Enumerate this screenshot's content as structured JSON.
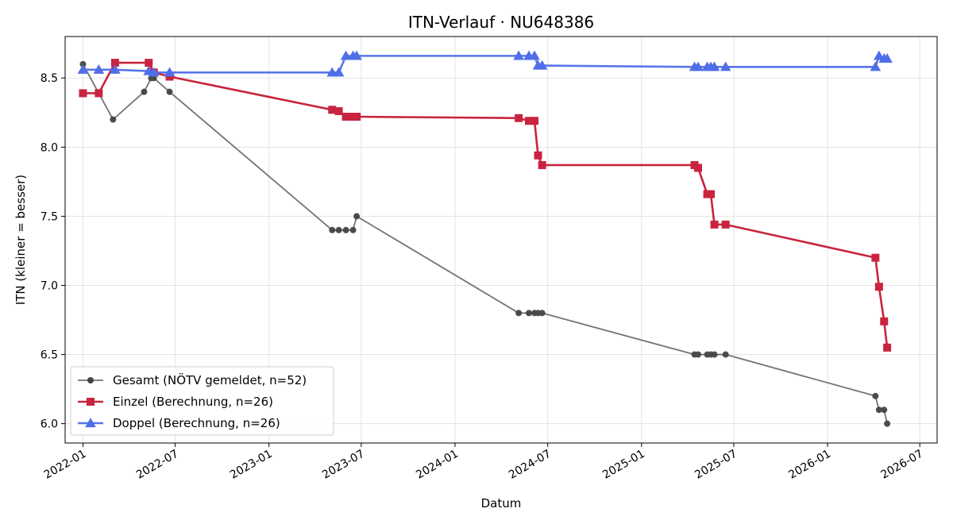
{
  "chart_data": {
    "type": "line",
    "title": "ITN-Verlauf · NU648386",
    "xlabel": "Datum",
    "ylabel": "ITN  (kleiner = besser)",
    "x_type": "date",
    "xlim": [
      "2021-11-27",
      "2026-08-04"
    ],
    "ylim": [
      5.86,
      8.8
    ],
    "x_ticks": [
      "2022-01",
      "2022-07",
      "2023-01",
      "2023-07",
      "2024-01",
      "2024-07",
      "2025-01",
      "2025-07",
      "2026-01",
      "2026-07"
    ],
    "y_ticks": [
      6.0,
      6.5,
      7.0,
      7.5,
      8.0,
      8.5
    ],
    "y_tick_labels": [
      "6.0",
      "6.5",
      "7.0",
      "7.5",
      "8.0",
      "8.5"
    ],
    "grid": true,
    "legend_position": "bottom-left",
    "series": [
      {
        "name": "Gesamt (NÖTV gemeldet, n=52)",
        "color": "#444444",
        "marker": "circle",
        "x": [
          "2022-01-01",
          "2022-03-01",
          "2022-05-01",
          "2022-05-15",
          "2022-05-20",
          "2022-06-20",
          "2023-05-05",
          "2023-05-18",
          "2023-06-01",
          "2023-06-15",
          "2023-06-22",
          "2024-05-05",
          "2024-05-25",
          "2024-06-05",
          "2024-06-12",
          "2024-06-20",
          "2025-04-15",
          "2025-04-22",
          "2025-05-10",
          "2025-05-17",
          "2025-05-24",
          "2025-06-15",
          "2026-04-05",
          "2026-04-12",
          "2026-04-22",
          "2026-04-28"
        ],
        "y": [
          8.6,
          8.2,
          8.4,
          8.5,
          8.5,
          8.4,
          7.4,
          7.4,
          7.4,
          7.4,
          7.5,
          6.8,
          6.8,
          6.8,
          6.8,
          6.8,
          6.5,
          6.5,
          6.5,
          6.5,
          6.5,
          6.5,
          6.2,
          6.1,
          6.1,
          6.0
        ]
      },
      {
        "name": "Einzel (Berechnung, n=26)",
        "color": "#c8243f",
        "marker": "square",
        "x": [
          "2022-01-01",
          "2022-02-01",
          "2022-03-05",
          "2022-05-10",
          "2022-05-20",
          "2022-06-20",
          "2023-05-05",
          "2023-05-18",
          "2023-06-01",
          "2023-06-15",
          "2023-06-22",
          "2024-05-05",
          "2024-05-25",
          "2024-06-05",
          "2024-06-12",
          "2024-06-20",
          "2025-04-15",
          "2025-04-22",
          "2025-05-10",
          "2025-05-17",
          "2025-05-24",
          "2025-06-15",
          "2026-04-05",
          "2026-04-12",
          "2026-04-22",
          "2026-04-28"
        ],
        "y": [
          8.39,
          8.39,
          8.61,
          8.61,
          8.54,
          8.51,
          8.27,
          8.26,
          8.22,
          8.22,
          8.22,
          8.21,
          8.19,
          8.19,
          7.94,
          7.87,
          7.87,
          7.85,
          7.66,
          7.66,
          7.44,
          7.44,
          7.2,
          6.99,
          6.74,
          6.55
        ]
      },
      {
        "name": "Doppel (Berechnung, n=26)",
        "color": "#4f6fe8",
        "marker": "triangle",
        "x": [
          "2022-01-01",
          "2022-02-01",
          "2022-03-05",
          "2022-05-10",
          "2022-05-20",
          "2022-06-20",
          "2023-05-05",
          "2023-05-18",
          "2023-06-01",
          "2023-06-15",
          "2023-06-22",
          "2024-05-05",
          "2024-05-25",
          "2024-06-05",
          "2024-06-12",
          "2024-06-20",
          "2025-04-15",
          "2025-04-22",
          "2025-05-10",
          "2025-05-17",
          "2025-05-24",
          "2025-06-15",
          "2026-04-05",
          "2026-04-12",
          "2026-04-22",
          "2026-04-28"
        ],
        "y": [
          8.56,
          8.56,
          8.56,
          8.55,
          8.54,
          8.54,
          8.54,
          8.54,
          8.66,
          8.66,
          8.66,
          8.66,
          8.66,
          8.66,
          8.59,
          8.59,
          8.58,
          8.58,
          8.58,
          8.58,
          8.58,
          8.58,
          8.58,
          8.66,
          8.64,
          8.64
        ]
      }
    ]
  }
}
